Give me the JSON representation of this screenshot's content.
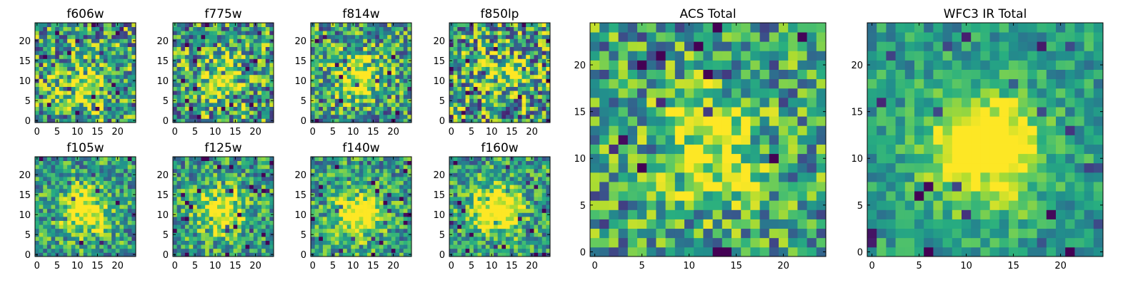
{
  "figure": {
    "description_panels": 10,
    "colormap": [
      "#440154",
      "#472d7b",
      "#3b528b",
      "#2c728e",
      "#21918c",
      "#28ae80",
      "#5ec962",
      "#addc30",
      "#fde725"
    ]
  },
  "chart_data": [
    {
      "type": "heatmap",
      "title": "f606w",
      "grid": 25,
      "xticks": [
        0,
        5,
        10,
        15,
        20
      ],
      "yticks": [
        0,
        5,
        10,
        15,
        20
      ],
      "xlim": [
        0,
        25
      ],
      "ylim": [
        0,
        25
      ],
      "peak_center": [
        12,
        8
      ],
      "peak_strength": 0.35,
      "noise": 0.55,
      "seed": 11
    },
    {
      "type": "heatmap",
      "title": "f775w",
      "grid": 25,
      "xticks": [
        0,
        5,
        10,
        15,
        20
      ],
      "yticks": [
        0,
        5,
        10,
        15,
        20
      ],
      "xlim": [
        0,
        25
      ],
      "ylim": [
        0,
        25
      ],
      "peak_center": [
        11,
        10
      ],
      "peak_strength": 0.4,
      "noise": 0.55,
      "seed": 23
    },
    {
      "type": "heatmap",
      "title": "f814w",
      "grid": 25,
      "xticks": [
        0,
        5,
        10,
        15,
        20
      ],
      "yticks": [
        0,
        5,
        10,
        15,
        20
      ],
      "xlim": [
        0,
        25
      ],
      "ylim": [
        0,
        25
      ],
      "peak_center": [
        11,
        11
      ],
      "peak_strength": 0.5,
      "noise": 0.5,
      "seed": 37
    },
    {
      "type": "heatmap",
      "title": "f850lp",
      "grid": 25,
      "xticks": [
        0,
        5,
        10,
        15,
        20
      ],
      "yticks": [
        0,
        5,
        10,
        15,
        20
      ],
      "xlim": [
        0,
        25
      ],
      "ylim": [
        0,
        25
      ],
      "peak_center": [
        13,
        12
      ],
      "peak_strength": 0.3,
      "noise": 0.6,
      "seed": 41
    },
    {
      "type": "heatmap",
      "title": "f105w",
      "grid": 25,
      "xticks": [
        0,
        5,
        10,
        15,
        20
      ],
      "yticks": [
        0,
        5,
        10,
        15,
        20
      ],
      "xlim": [
        0,
        25
      ],
      "ylim": [
        0,
        25
      ],
      "peak_center": [
        12,
        11
      ],
      "peak_strength": 0.6,
      "noise": 0.4,
      "seed": 53
    },
    {
      "type": "heatmap",
      "title": "f125w",
      "grid": 25,
      "xticks": [
        0,
        5,
        10,
        15,
        20
      ],
      "yticks": [
        0,
        5,
        10,
        15,
        20
      ],
      "xlim": [
        0,
        25
      ],
      "ylim": [
        0,
        25
      ],
      "peak_center": [
        11,
        11
      ],
      "peak_strength": 0.55,
      "noise": 0.4,
      "seed": 67
    },
    {
      "type": "heatmap",
      "title": "f140w",
      "grid": 25,
      "xticks": [
        0,
        5,
        10,
        15,
        20
      ],
      "yticks": [
        0,
        5,
        10,
        15,
        20
      ],
      "xlim": [
        0,
        25
      ],
      "ylim": [
        0,
        25
      ],
      "peak_center": [
        11,
        10
      ],
      "peak_strength": 0.6,
      "noise": 0.4,
      "seed": 71
    },
    {
      "type": "heatmap",
      "title": "f160w",
      "grid": 25,
      "xticks": [
        0,
        5,
        10,
        15,
        20
      ],
      "yticks": [
        0,
        5,
        10,
        15,
        20
      ],
      "xlim": [
        0,
        25
      ],
      "ylim": [
        0,
        25
      ],
      "peak_center": [
        11,
        11
      ],
      "peak_strength": 0.7,
      "noise": 0.4,
      "seed": 83
    },
    {
      "type": "heatmap",
      "title": "ACS Total",
      "grid": 25,
      "xticks": [
        0,
        5,
        10,
        15,
        20
      ],
      "yticks": [
        0,
        5,
        10,
        15,
        20
      ],
      "xlim": [
        0,
        25
      ],
      "ylim": [
        0,
        25
      ],
      "peak_center": [
        12,
        11
      ],
      "peak_strength": 0.45,
      "noise": 0.45,
      "seed": 97
    },
    {
      "type": "heatmap",
      "title": "WFC3 IR Total",
      "grid": 25,
      "xticks": [
        0,
        5,
        10,
        15,
        20
      ],
      "yticks": [
        0,
        5,
        10,
        15,
        20
      ],
      "xlim": [
        0,
        25
      ],
      "ylim": [
        0,
        25
      ],
      "peak_center": [
        12,
        11
      ],
      "peak_strength": 0.75,
      "noise": 0.25,
      "seed": 101
    }
  ]
}
